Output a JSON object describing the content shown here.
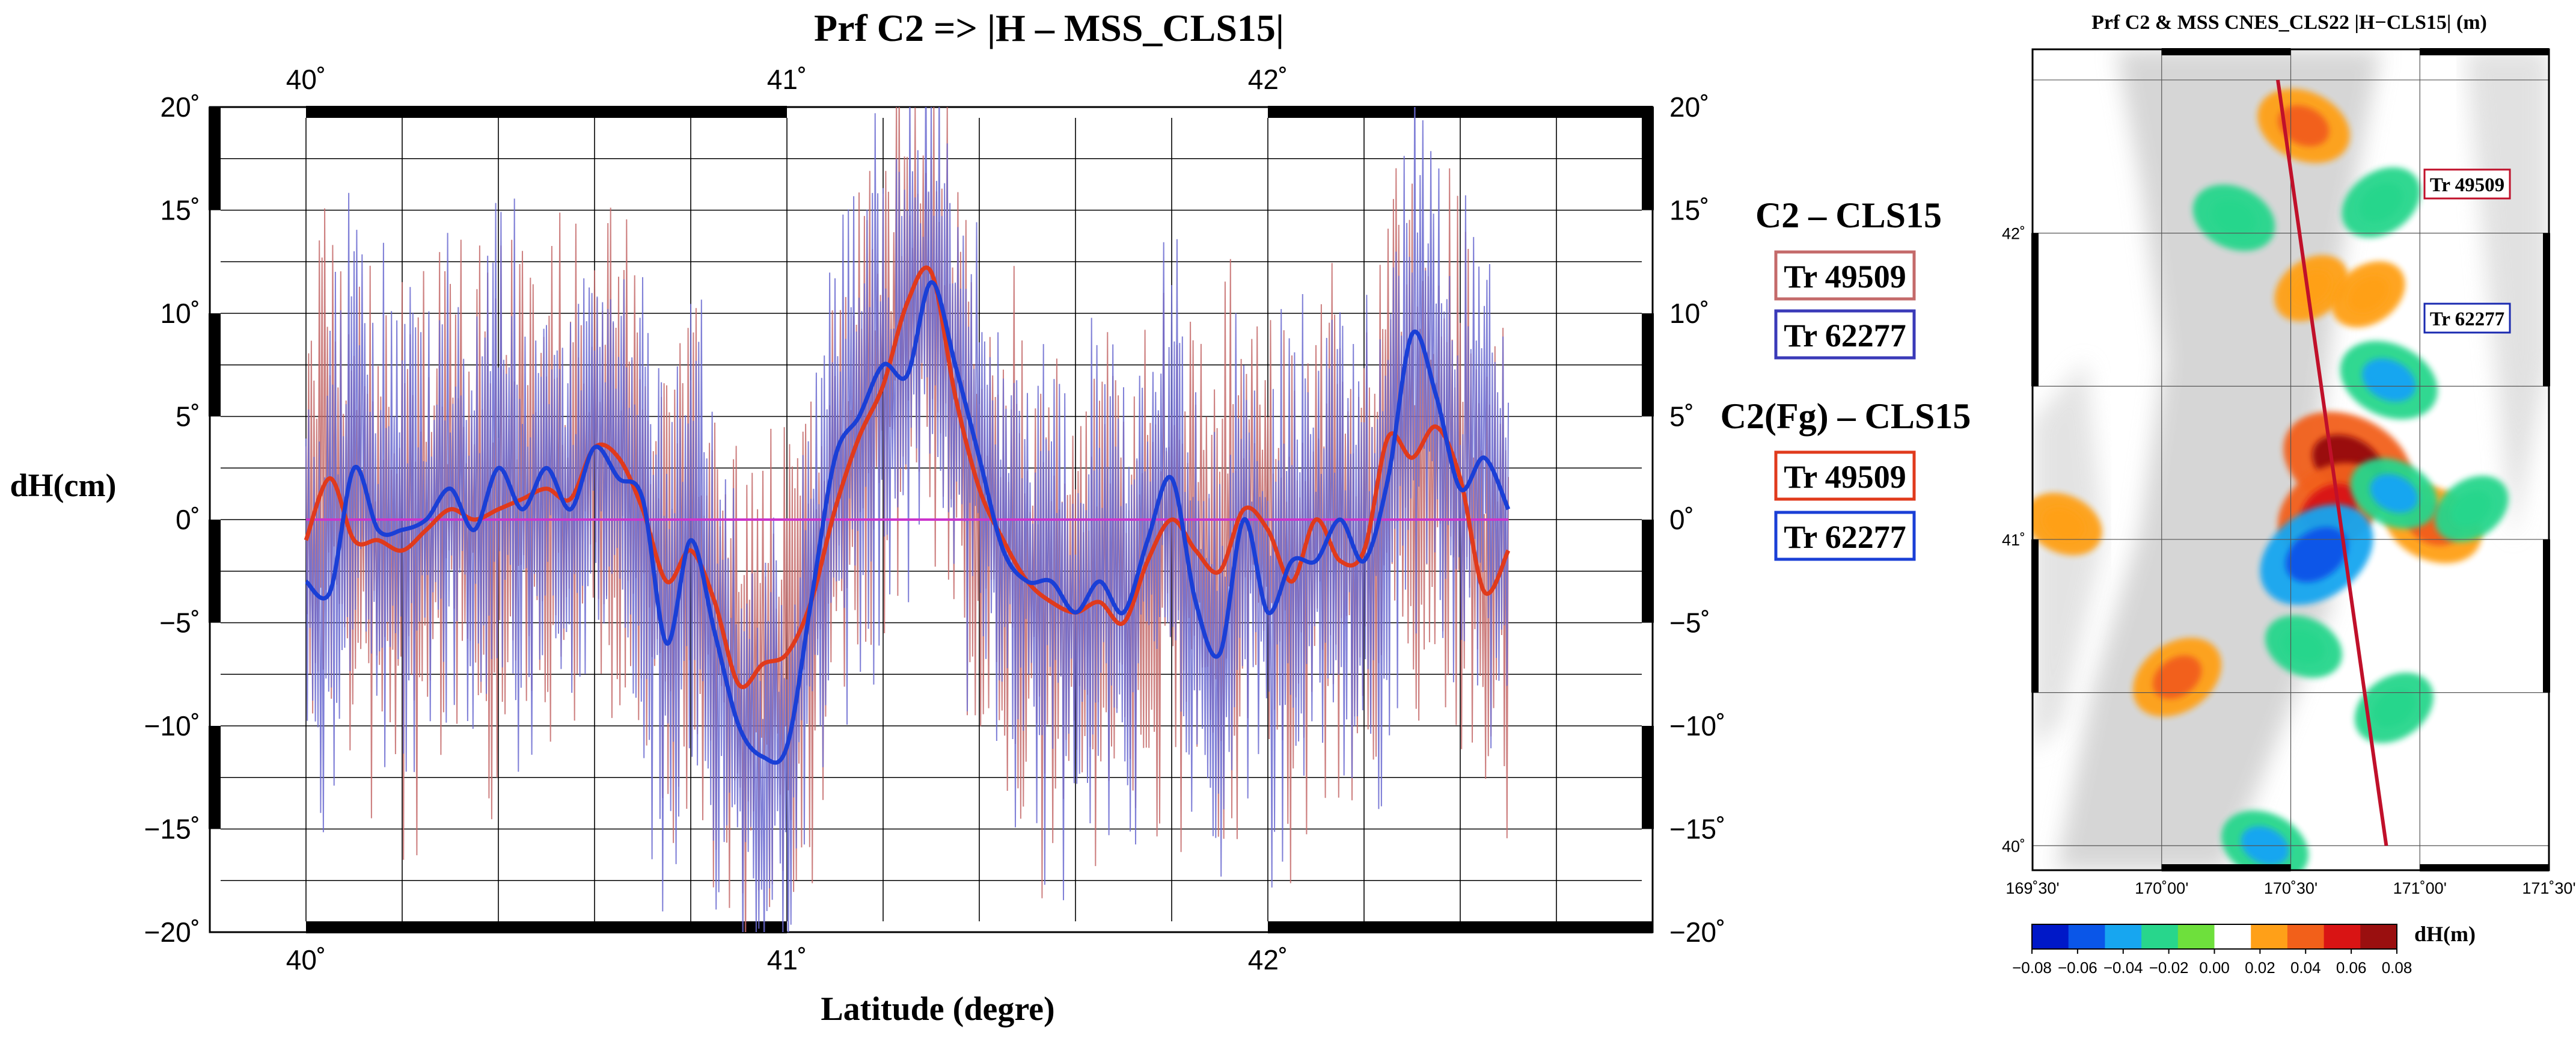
{
  "colors": {
    "track_a": "#e03a1c",
    "track_b": "#1a3fd6",
    "track_a_thin": "#c46a6a",
    "track_b_thin": "#6a6ad0",
    "zero_line": "#cc33cc",
    "map_track": "#c0102a",
    "map_frame": "#000000"
  },
  "chart_data": [
    {
      "type": "line",
      "title": "Prf C2  => |H – MSS_CLS15|",
      "xlabel": "Latitude (degre)",
      "ylabel": "dH(cm)",
      "xlim": [
        39.8,
        42.8
      ],
      "ylim": [
        -20,
        20
      ],
      "x_ticks": [
        40,
        41,
        42
      ],
      "x_tick_labels": [
        "40˚",
        "41˚",
        "42˚"
      ],
      "y_ticks": [
        -20,
        -15,
        -10,
        -5,
        0,
        5,
        10,
        15,
        20
      ],
      "y_tick_labels": [
        "−20˚",
        "−15˚",
        "−10˚",
        "−5˚",
        "0˚",
        "5˚",
        "10˚",
        "15˚",
        "20˚"
      ],
      "grid": true,
      "x_data_range": [
        40.0,
        42.5
      ],
      "legend": {
        "group1_title": "C2 – CLS15",
        "group1_items": [
          "Tr 49509",
          "Tr 62277"
        ],
        "group2_title": "C2(Fg) – CLS15",
        "group2_items": [
          "Tr 49509",
          "Tr 62277"
        ]
      },
      "series": [
        {
          "name": "Tr 49509 C2(Fg) – CLS15 (filtered)",
          "x": [
            40.0,
            40.05,
            40.1,
            40.15,
            40.2,
            40.25,
            40.3,
            40.35,
            40.4,
            40.45,
            40.5,
            40.55,
            40.6,
            40.65,
            40.7,
            40.75,
            40.8,
            40.85,
            40.9,
            40.95,
            41.0,
            41.05,
            41.1,
            41.15,
            41.2,
            41.25,
            41.3,
            41.35,
            41.4,
            41.45,
            41.5,
            41.55,
            41.6,
            41.65,
            41.7,
            41.75,
            41.8,
            41.85,
            41.9,
            41.95,
            42.0,
            42.05,
            42.1,
            42.15,
            42.2,
            42.25,
            42.3,
            42.35,
            42.4,
            42.45,
            42.5
          ],
          "values": [
            -1.0,
            2.0,
            -1.0,
            -1.0,
            -1.5,
            -0.5,
            0.5,
            0.0,
            0.5,
            1.0,
            1.5,
            1.0,
            3.5,
            3.0,
            0.5,
            -3.0,
            -1.5,
            -4.0,
            -8.0,
            -7.0,
            -6.5,
            -4.0,
            0.5,
            4.0,
            6.5,
            10.5,
            12.0,
            6.0,
            1.5,
            -1.0,
            -3.0,
            -4.0,
            -4.5,
            -4.0,
            -5.0,
            -2.0,
            0.0,
            -1.5,
            -2.5,
            0.5,
            -0.5,
            -3.0,
            0.0,
            -2.0,
            -1.5,
            4.0,
            3.0,
            4.5,
            2.0,
            -3.5,
            -1.5
          ]
        },
        {
          "name": "Tr 62277 C2(Fg) – CLS15 (filtered)",
          "x": [
            40.0,
            40.05,
            40.1,
            40.15,
            40.2,
            40.25,
            40.3,
            40.35,
            40.4,
            40.45,
            40.5,
            40.55,
            40.6,
            40.65,
            40.7,
            40.75,
            40.8,
            40.85,
            40.9,
            40.95,
            41.0,
            41.05,
            41.1,
            41.15,
            41.2,
            41.25,
            41.3,
            41.35,
            41.4,
            41.45,
            41.5,
            41.55,
            41.6,
            41.65,
            41.7,
            41.75,
            41.8,
            41.85,
            41.9,
            41.95,
            42.0,
            42.05,
            42.1,
            42.15,
            42.2,
            42.25,
            42.3,
            42.35,
            42.4,
            42.45,
            42.5
          ],
          "values": [
            -3.0,
            -3.5,
            2.5,
            -0.5,
            -0.5,
            0.0,
            1.5,
            -0.5,
            2.5,
            0.5,
            2.5,
            0.5,
            3.5,
            2.0,
            1.0,
            -6.0,
            -1.0,
            -5.5,
            -10.0,
            -11.5,
            -11.0,
            -4.0,
            3.0,
            5.0,
            7.5,
            7.0,
            11.5,
            7.5,
            3.0,
            -1.5,
            -3.0,
            -3.0,
            -4.5,
            -3.0,
            -4.5,
            -1.0,
            2.0,
            -4.0,
            -6.5,
            0.0,
            -4.5,
            -2.0,
            -2.0,
            0.0,
            -2.0,
            2.0,
            9.0,
            6.0,
            1.5,
            3.0,
            0.5
          ]
        }
      ]
    },
    {
      "type": "heatmap",
      "title": "Prf C2 & MSS CNES_CLS22 |H−CLS15| (m)",
      "x_tick_labels": [
        "169˚30'",
        "170˚00'",
        "170˚30'",
        "171˚00'",
        "171˚30'"
      ],
      "y_tick_labels": [
        "42˚",
        "41˚",
        "40˚"
      ],
      "xlim": [
        169.5,
        171.5
      ],
      "ylim": [
        39.92,
        42.6
      ],
      "track_labels": [
        "Tr 49509",
        "Tr 62277"
      ],
      "colorbar_label": "dH(m)",
      "colorbar_range": [
        -0.08,
        0.08
      ],
      "colorbar_tick_labels": [
        "−0.08",
        "−0.06",
        "−0.04",
        "−0.02",
        "0.00",
        "0.02",
        "0.04",
        "0.06",
        "0.08"
      ],
      "colorbar_colors": [
        "#0018c8",
        "#0a56e8",
        "#17a6f0",
        "#28d68c",
        "#6ee03c",
        "#ffffff",
        "#ffa018",
        "#f2601a",
        "#d91414",
        "#9a0f0f"
      ],
      "track": {
        "start": [
          170.45,
          42.5
        ],
        "end": [
          170.87,
          40.0
        ]
      },
      "anomalies": [
        {
          "lon": 170.55,
          "lat": 42.35,
          "value": 0.045
        },
        {
          "lon": 170.58,
          "lat": 41.82,
          "value": 0.03
        },
        {
          "lon": 170.72,
          "lat": 41.25,
          "value": 0.08
        },
        {
          "lon": 170.65,
          "lat": 41.1,
          "value": 0.06
        },
        {
          "lon": 171.05,
          "lat": 41.05,
          "value": 0.05
        },
        {
          "lon": 170.06,
          "lat": 40.55,
          "value": 0.045
        },
        {
          "lon": 169.62,
          "lat": 41.05,
          "value": 0.03
        },
        {
          "lon": 170.8,
          "lat": 41.8,
          "value": 0.03
        },
        {
          "lon": 170.88,
          "lat": 41.52,
          "value": -0.05
        },
        {
          "lon": 170.6,
          "lat": 40.95,
          "value": -0.07
        },
        {
          "lon": 170.9,
          "lat": 41.15,
          "value": -0.04
        },
        {
          "lon": 170.85,
          "lat": 42.1,
          "value": -0.035
        },
        {
          "lon": 170.28,
          "lat": 42.05,
          "value": -0.035
        },
        {
          "lon": 170.9,
          "lat": 40.45,
          "value": -0.035
        },
        {
          "lon": 170.4,
          "lat": 40.0,
          "value": -0.04
        },
        {
          "lon": 171.2,
          "lat": 41.1,
          "value": -0.03
        },
        {
          "lon": 170.55,
          "lat": 40.65,
          "value": -0.03
        }
      ]
    }
  ]
}
